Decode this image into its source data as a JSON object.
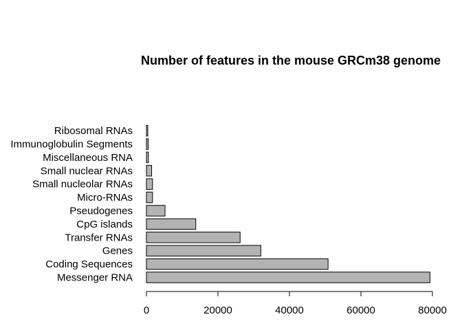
{
  "chart_data": {
    "type": "bar",
    "orientation": "horizontal",
    "title": "Number of features in the mouse GRCm38 genome",
    "xlabel": "",
    "ylabel": "",
    "categories": [
      "Messenger RNA",
      "Coding Sequences",
      "Genes",
      "Transfer RNAs",
      "CpG islands",
      "Pseudogenes",
      "Micro-RNAs",
      "Small nucleolar RNAs",
      "Small nuclear RNAs",
      "Miscellaneous RNA",
      "Immunoglobulin Segments",
      "Ribosomal RNAs"
    ],
    "values": [
      79300,
      50800,
      32000,
      26200,
      13800,
      5200,
      1700,
      1700,
      1450,
      550,
      500,
      380
    ],
    "xlim": [
      0,
      80000
    ],
    "x_ticks": [
      0,
      20000,
      40000,
      60000,
      80000
    ],
    "x_tick_labels": [
      "0",
      "20000",
      "40000",
      "60000",
      "80000"
    ],
    "grid": false,
    "legend": "none",
    "bar_color": "#b3b3b3",
    "bar_edge_color": "#000000"
  }
}
